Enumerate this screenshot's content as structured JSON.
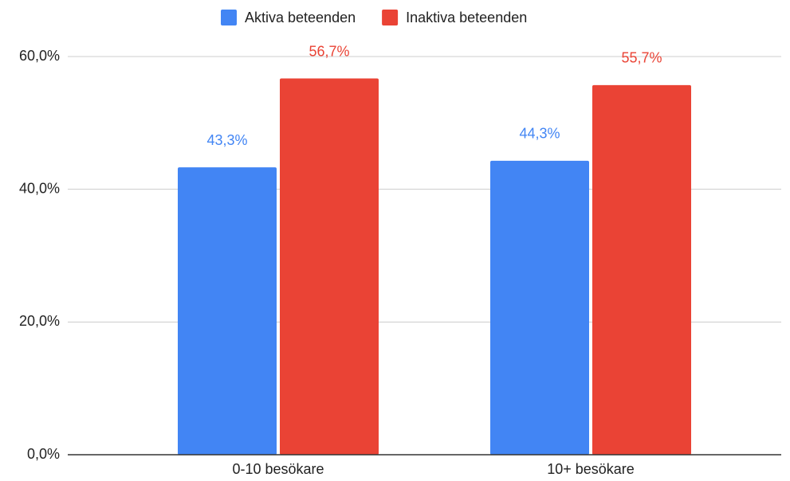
{
  "chart_data": {
    "type": "bar",
    "categories": [
      "0-10 besökare",
      "10+ besökare"
    ],
    "series": [
      {
        "name": "Aktiva beteenden",
        "color": "#4285f4",
        "values": [
          43.3,
          44.3
        ],
        "value_labels": [
          "43,3%",
          "44,3%"
        ]
      },
      {
        "name": "Inaktiva beteenden",
        "color": "#ea4335",
        "values": [
          56.7,
          55.7
        ],
        "value_labels": [
          "56,7%",
          "55,7%"
        ]
      }
    ],
    "ylim": [
      0,
      60
    ],
    "yticks": [
      {
        "value": 0,
        "label": "0,0%"
      },
      {
        "value": 20,
        "label": "20,0%"
      },
      {
        "value": 40,
        "label": "40,0%"
      },
      {
        "value": 60,
        "label": "60,0%"
      }
    ],
    "grid": true,
    "legend": "top"
  }
}
